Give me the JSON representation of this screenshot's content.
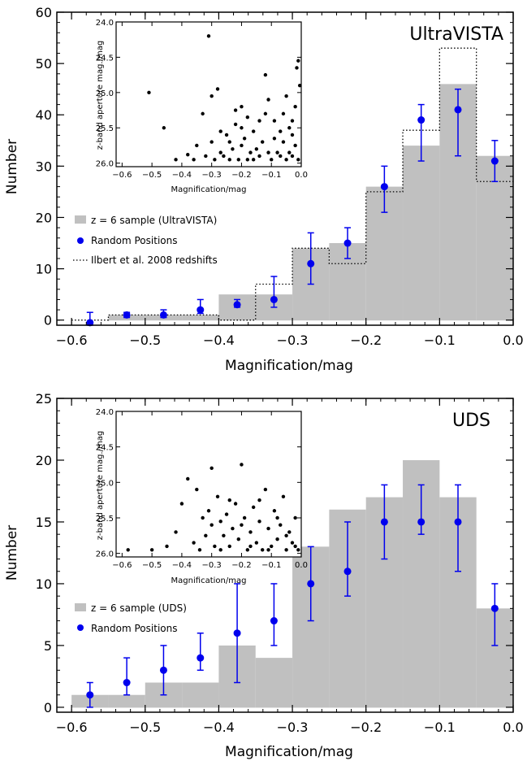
{
  "colors": {
    "histogram": "#c0c0c0",
    "random": "#0000ee",
    "inset_points": "#000000",
    "frame": "#000000"
  },
  "chart_data": [
    {
      "type": "bar",
      "panel_label": "UltraVISTA",
      "xlabel": "Magnification/mag",
      "ylabel": "Number",
      "xlim": [
        -0.62,
        0.0
      ],
      "ylim": [
        -1,
        60
      ],
      "x_ticks": [
        -0.6,
        -0.5,
        -0.4,
        -0.3,
        -0.2,
        -0.1,
        0.0
      ],
      "x_tick_labels": [
        "−0.6",
        "−0.5",
        "−0.4",
        "−0.3",
        "−0.2",
        "−0.1",
        "0.0"
      ],
      "y_ticks": [
        0,
        10,
        20,
        30,
        40,
        50,
        60
      ],
      "y_tick_labels": [
        "0",
        "10",
        "20",
        "30",
        "40",
        "50",
        "60"
      ],
      "bin_edges": [
        -0.6,
        -0.55,
        -0.5,
        -0.45,
        -0.4,
        -0.35,
        -0.3,
        -0.25,
        -0.2,
        -0.15,
        -0.1,
        -0.05,
        0.0
      ],
      "series": [
        {
          "name": "z = 6 sample (UltraVISTA)",
          "style": "filled-histogram",
          "values": [
            0,
            1,
            1,
            1,
            5,
            5,
            14,
            15,
            26,
            34,
            46,
            32
          ]
        },
        {
          "name": "Ilbert et al. 2008 redshifts",
          "style": "dotted-step",
          "values": [
            0,
            1,
            1,
            1,
            0,
            7,
            14,
            11,
            25,
            37,
            53,
            27
          ]
        },
        {
          "name": "Random Positions",
          "style": "points-with-errorbars",
          "x": [
            -0.575,
            -0.525,
            -0.475,
            -0.425,
            -0.375,
            -0.325,
            -0.275,
            -0.225,
            -0.175,
            -0.125,
            -0.075,
            -0.025
          ],
          "y": [
            -0.5,
            1,
            1,
            2,
            3,
            4,
            11,
            15,
            26,
            39,
            41,
            31
          ],
          "yerr_low": [
            -1,
            0.5,
            0.5,
            1.3,
            2.5,
            2.5,
            7,
            12,
            21,
            31,
            32,
            27
          ],
          "yerr_high": [
            1.5,
            1.5,
            2,
            4,
            4,
            8.5,
            17,
            18,
            30,
            42,
            45,
            35
          ]
        }
      ],
      "inset": {
        "xlabel": "Magnification/mag",
        "ylabel": "z-band aperture mag./mag",
        "xlim": [
          -0.62,
          0.0
        ],
        "ylim_top_to_bottom": [
          24.0,
          26.05
        ],
        "x_ticks": [
          -0.6,
          -0.5,
          -0.4,
          -0.3,
          -0.2,
          -0.1,
          0.0
        ],
        "x_tick_labels": [
          "−0.6",
          "−0.5",
          "−0.4",
          "−0.3",
          "−0.2",
          "−0.1",
          "0.0"
        ],
        "y_ticks": [
          24.0,
          24.5,
          25.0,
          25.5,
          26.0
        ],
        "y_tick_labels": [
          "24.0",
          "24.5",
          "25.0",
          "25.5",
          "26.0"
        ],
        "points": [
          [
            -0.51,
            25.0
          ],
          [
            -0.31,
            24.2
          ],
          [
            -0.46,
            25.5
          ],
          [
            -0.42,
            25.95
          ],
          [
            -0.38,
            25.88
          ],
          [
            -0.35,
            25.75
          ],
          [
            -0.33,
            25.3
          ],
          [
            -0.3,
            25.05
          ],
          [
            -0.28,
            24.95
          ],
          [
            -0.26,
            25.9
          ],
          [
            -0.24,
            25.7
          ],
          [
            -0.22,
            25.45
          ],
          [
            -0.2,
            25.2
          ],
          [
            -0.18,
            25.95
          ],
          [
            -0.16,
            25.55
          ],
          [
            -0.15,
            25.8
          ],
          [
            -0.12,
            24.75
          ],
          [
            -0.11,
            25.1
          ],
          [
            -0.09,
            25.65
          ],
          [
            -0.07,
            25.9
          ],
          [
            -0.06,
            25.3
          ],
          [
            -0.05,
            25.05
          ],
          [
            -0.04,
            25.5
          ],
          [
            -0.03,
            25.9
          ],
          [
            -0.02,
            25.75
          ],
          [
            -0.015,
            24.65
          ],
          [
            -0.01,
            24.55
          ],
          [
            -0.005,
            24.9
          ],
          [
            -0.02,
            25.2
          ],
          [
            -0.03,
            25.6
          ],
          [
            -0.08,
            25.85
          ],
          [
            -0.1,
            25.95
          ],
          [
            -0.13,
            25.7
          ],
          [
            -0.14,
            25.4
          ],
          [
            -0.17,
            25.85
          ],
          [
            -0.19,
            25.65
          ],
          [
            -0.21,
            25.95
          ],
          [
            -0.23,
            25.8
          ],
          [
            -0.25,
            25.6
          ],
          [
            -0.27,
            25.85
          ],
          [
            -0.29,
            25.95
          ],
          [
            -0.3,
            25.7
          ],
          [
            -0.32,
            25.9
          ],
          [
            -0.36,
            25.95
          ],
          [
            -0.2,
            25.5
          ],
          [
            -0.12,
            25.3
          ],
          [
            -0.06,
            25.7
          ],
          [
            -0.01,
            25.95
          ],
          [
            -0.04,
            25.85
          ],
          [
            -0.09,
            25.4
          ],
          [
            -0.16,
            25.95
          ],
          [
            -0.22,
            25.25
          ],
          [
            -0.27,
            25.55
          ],
          [
            -0.11,
            25.85
          ],
          [
            -0.05,
            25.95
          ],
          [
            -0.03,
            25.4
          ],
          [
            -0.07,
            25.55
          ],
          [
            -0.14,
            25.9
          ],
          [
            -0.18,
            25.35
          ],
          [
            -0.24,
            25.95
          ],
          [
            -0.2,
            25.75
          ]
        ]
      },
      "legend": {
        "placement": "middle-left",
        "entries": [
          "z = 6 sample (UltraVISTA)",
          "Random Positions",
          "Ilbert et al. 2008 redshifts"
        ]
      }
    },
    {
      "type": "bar",
      "panel_label": "UDS",
      "xlabel": "Magnification/mag",
      "ylabel": "Number",
      "xlim": [
        -0.62,
        0.0
      ],
      "ylim": [
        -0.4,
        25
      ],
      "x_ticks": [
        -0.6,
        -0.5,
        -0.4,
        -0.3,
        -0.2,
        -0.1,
        0.0
      ],
      "x_tick_labels": [
        "−0.6",
        "−0.5",
        "−0.4",
        "−0.3",
        "−0.2",
        "−0.1",
        "0.0"
      ],
      "y_ticks": [
        0,
        5,
        10,
        15,
        20,
        25
      ],
      "y_tick_labels": [
        "0",
        "5",
        "10",
        "15",
        "20",
        "25"
      ],
      "bin_edges": [
        -0.6,
        -0.55,
        -0.5,
        -0.45,
        -0.4,
        -0.35,
        -0.3,
        -0.25,
        -0.2,
        -0.15,
        -0.1,
        -0.05,
        0.0
      ],
      "series": [
        {
          "name": "z = 6 sample (UDS)",
          "style": "filled-histogram",
          "values": [
            1,
            1,
            2,
            2,
            5,
            4,
            13,
            16,
            17,
            20,
            17,
            8
          ]
        },
        {
          "name": "Random Positions",
          "style": "points-with-errorbars",
          "x": [
            -0.575,
            -0.525,
            -0.475,
            -0.425,
            -0.375,
            -0.325,
            -0.275,
            -0.225,
            -0.175,
            -0.125,
            -0.075,
            -0.025
          ],
          "y": [
            1,
            2,
            3,
            4,
            6,
            7,
            10,
            11,
            15,
            15,
            15,
            8
          ],
          "yerr_low": [
            0,
            1,
            1,
            3,
            2,
            5,
            7,
            9,
            12,
            14,
            11,
            5
          ],
          "yerr_high": [
            2,
            4,
            5,
            6,
            10,
            10,
            13,
            15,
            18,
            18,
            18,
            10
          ]
        }
      ],
      "inset": {
        "xlabel": "Magnification/mag",
        "ylabel": "z-band aperture mag./mag",
        "xlim": [
          -0.62,
          0.0
        ],
        "ylim_top_to_bottom": [
          24.0,
          26.05
        ],
        "x_ticks": [
          -0.6,
          -0.5,
          -0.4,
          -0.3,
          -0.2,
          -0.1,
          0.0
        ],
        "x_tick_labels": [
          "−0.6",
          "−0.5",
          "−0.4",
          "−0.3",
          "−0.2",
          "−0.1",
          "0.0"
        ],
        "y_ticks": [
          24.0,
          24.5,
          25.0,
          25.5,
          26.0
        ],
        "y_tick_labels": [
          "24.0",
          "24.5",
          "25.0",
          "25.5",
          "26.0"
        ],
        "points": [
          [
            -0.38,
            24.95
          ],
          [
            -0.3,
            24.8
          ],
          [
            -0.2,
            24.75
          ],
          [
            -0.42,
            25.7
          ],
          [
            -0.4,
            25.3
          ],
          [
            -0.35,
            25.1
          ],
          [
            -0.33,
            25.5
          ],
          [
            -0.31,
            25.4
          ],
          [
            -0.29,
            25.9
          ],
          [
            -0.28,
            25.2
          ],
          [
            -0.27,
            25.55
          ],
          [
            -0.26,
            25.75
          ],
          [
            -0.25,
            25.45
          ],
          [
            -0.24,
            25.9
          ],
          [
            -0.23,
            25.65
          ],
          [
            -0.22,
            25.3
          ],
          [
            -0.21,
            25.8
          ],
          [
            -0.19,
            25.5
          ],
          [
            -0.18,
            25.95
          ],
          [
            -0.17,
            25.7
          ],
          [
            -0.16,
            25.35
          ],
          [
            -0.15,
            25.85
          ],
          [
            -0.14,
            25.55
          ],
          [
            -0.13,
            25.95
          ],
          [
            -0.12,
            25.1
          ],
          [
            -0.11,
            25.65
          ],
          [
            -0.1,
            25.9
          ],
          [
            -0.09,
            25.4
          ],
          [
            -0.08,
            25.8
          ],
          [
            -0.07,
            25.6
          ],
          [
            -0.06,
            25.2
          ],
          [
            -0.05,
            25.95
          ],
          [
            -0.04,
            25.7
          ],
          [
            -0.03,
            25.85
          ],
          [
            -0.02,
            25.5
          ],
          [
            -0.01,
            25.95
          ],
          [
            -0.36,
            25.85
          ],
          [
            -0.34,
            25.95
          ],
          [
            -0.32,
            25.75
          ],
          [
            -0.3,
            25.6
          ],
          [
            -0.27,
            25.95
          ],
          [
            -0.24,
            25.25
          ],
          [
            -0.2,
            25.6
          ],
          [
            -0.17,
            25.9
          ],
          [
            -0.14,
            25.25
          ],
          [
            -0.11,
            25.95
          ],
          [
            -0.08,
            25.5
          ],
          [
            -0.05,
            25.75
          ],
          [
            -0.02,
            25.9
          ],
          [
            -0.45,
            25.9
          ],
          [
            -0.5,
            25.95
          ],
          [
            -0.58,
            25.95
          ]
        ]
      },
      "legend": {
        "placement": "middle-left",
        "entries": [
          "z = 6 sample (UDS)",
          "Random Positions"
        ]
      }
    }
  ]
}
